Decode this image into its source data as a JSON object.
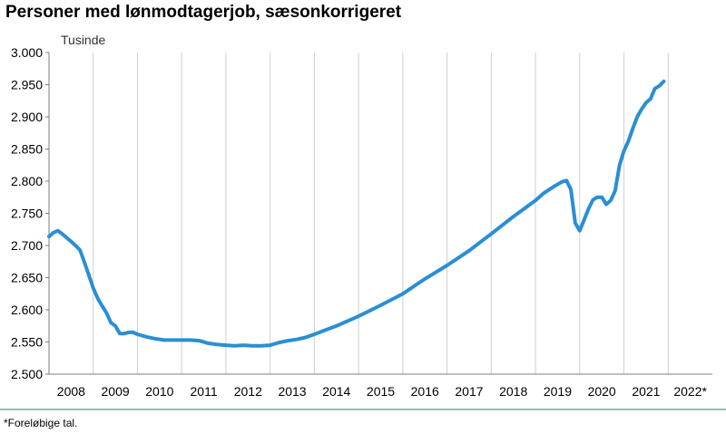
{
  "title": "Personer med lønmodtagerjob, sæsonkorrigeret",
  "footnote": "*Foreløbige tal.",
  "chart_data": {
    "type": "line",
    "title": "Personer med lønmodtagerjob, sæsonkorrigeret",
    "ylabel": "Tusinde",
    "xlabel": "",
    "ylim": [
      2500,
      3000
    ],
    "yticks": [
      "2.500",
      "2.550",
      "2.600",
      "2.650",
      "2.700",
      "2.750",
      "2.800",
      "2.850",
      "2.900",
      "2.950",
      "3.000"
    ],
    "categories": [
      "2008",
      "2009",
      "2010",
      "2011",
      "2012",
      "2013",
      "2014",
      "2015",
      "2016",
      "2017",
      "2018",
      "2019",
      "2020",
      "2021",
      "2022*"
    ],
    "grid": "vertical",
    "line_color": "#2a8fd4",
    "series": [
      {
        "x": [
          2008.0,
          2008.1,
          2008.2,
          2008.3,
          2008.4,
          2008.5,
          2008.6,
          2008.7,
          2008.8,
          2008.9,
          2009.0,
          2009.1,
          2009.2,
          2009.3,
          2009.4,
          2009.5,
          2009.6,
          2009.7,
          2009.8,
          2009.9,
          2010.0,
          2010.2,
          2010.4,
          2010.6,
          2010.8,
          2011.0,
          2011.2,
          2011.4,
          2011.6,
          2011.8,
          2012.0,
          2012.2,
          2012.4,
          2012.6,
          2012.8,
          2013.0,
          2013.2,
          2013.4,
          2013.6,
          2013.8,
          2014.0,
          2014.5,
          2015.0,
          2015.5,
          2016.0,
          2016.5,
          2017.0,
          2017.5,
          2018.0,
          2018.5,
          2019.0,
          2019.2,
          2019.4,
          2019.6,
          2019.7,
          2019.8,
          2019.9,
          2020.0,
          2020.1,
          2020.2,
          2020.3,
          2020.4,
          2020.5,
          2020.6,
          2020.7,
          2020.8,
          2020.9,
          2021.0,
          2021.1,
          2021.2,
          2021.3,
          2021.4,
          2021.5,
          2021.6,
          2021.7,
          2021.8,
          2021.9
        ],
        "values": [
          2714,
          2720,
          2723,
          2718,
          2712,
          2706,
          2700,
          2693,
          2674,
          2654,
          2634,
          2618,
          2606,
          2595,
          2580,
          2575,
          2563,
          2563,
          2565,
          2565,
          2562,
          2558,
          2555,
          2553,
          2553,
          2553,
          2553,
          2552,
          2548,
          2546,
          2545,
          2544,
          2545,
          2544,
          2544,
          2545,
          2549,
          2552,
          2554,
          2557,
          2562,
          2575,
          2590,
          2607,
          2625,
          2648,
          2669,
          2692,
          2718,
          2745,
          2770,
          2782,
          2791,
          2799,
          2801,
          2787,
          2735,
          2723,
          2740,
          2757,
          2771,
          2775,
          2775,
          2764,
          2770,
          2785,
          2825,
          2847,
          2862,
          2882,
          2900,
          2912,
          2922,
          2928,
          2944,
          2948,
          2955
        ]
      }
    ]
  }
}
